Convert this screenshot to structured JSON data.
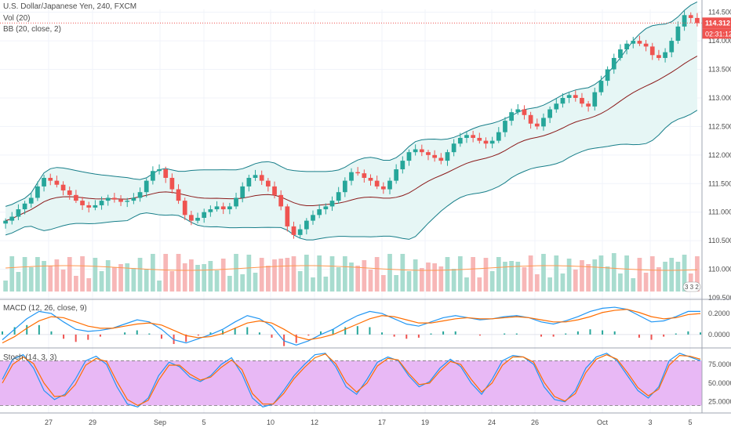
{
  "header": {
    "symbol_line": "U.S. Dollar/Japanese Yen, 240, FXCM",
    "vol_label": "Vol (20)",
    "bb_label": "BB (20, close, 2)"
  },
  "macd": {
    "label": "MACD (12, 26, close, 9)",
    "ticks": [
      "0.2000",
      "0.0000"
    ]
  },
  "stoch": {
    "label": "Stoch (14, 3, 3)",
    "ticks": [
      "75.0000",
      "50.0000",
      "25.0000"
    ]
  },
  "price_axis": {
    "ticks": [
      "114.500",
      "114.000",
      "113.500",
      "113.000",
      "112.500",
      "112.000",
      "111.500",
      "111.000",
      "110.500",
      "110.000",
      "109.500"
    ],
    "current_price": "114.312",
    "countdown": "02:31:12",
    "badge": "3 3 2"
  },
  "time_axis": {
    "labels": [
      "27",
      "29",
      "Sep",
      "5",
      "10",
      "12",
      "17",
      "19",
      "24",
      "26",
      "Oct",
      "3",
      "5"
    ]
  },
  "colors": {
    "up": "#26a69a",
    "down": "#ef5350",
    "volume_up": "#a8dccf",
    "volume_down": "#f7b7b7",
    "basis": "#8b1a1a",
    "band": "#177e89",
    "band_fill": "#e6f6f5",
    "macd_line": "#2196f3",
    "signal_line": "#ff6d00",
    "stoch_fill": "#e8b8f5"
  },
  "chart_data": [
    {
      "type": "candlestick",
      "title": "U.S. Dollar/Japanese Yen, 240, FXCM",
      "ylim": [
        109.5,
        114.55
      ],
      "series": [
        {
          "name": "USDJPY",
          "values": [
            110.85,
            110.92,
            111.05,
            111.15,
            111.25,
            111.45,
            111.6,
            111.55,
            111.48,
            111.38,
            111.3,
            111.2,
            111.12,
            111.08,
            111.12,
            111.2,
            111.25,
            111.22,
            111.18,
            111.2,
            111.25,
            111.35,
            111.55,
            111.72,
            111.75,
            111.6,
            111.4,
            111.2,
            110.95,
            110.85,
            110.9,
            111.0,
            111.05,
            111.1,
            111.05,
            111.1,
            111.25,
            111.45,
            111.6,
            111.65,
            111.55,
            111.45,
            111.3,
            111.1,
            110.75,
            110.6,
            110.7,
            110.85,
            110.95,
            111.05,
            111.1,
            111.2,
            111.35,
            111.55,
            111.7,
            111.68,
            111.6,
            111.55,
            111.45,
            111.4,
            111.55,
            111.75,
            111.9,
            112.05,
            112.1,
            112.05,
            112.0,
            111.95,
            111.9,
            112.05,
            112.2,
            112.3,
            112.35,
            112.3,
            112.25,
            112.2,
            112.25,
            112.4,
            112.6,
            112.75,
            112.8,
            112.7,
            112.55,
            112.5,
            112.65,
            112.8,
            112.9,
            113.0,
            113.05,
            113.0,
            112.9,
            112.85,
            113.1,
            113.3,
            113.5,
            113.7,
            113.85,
            113.95,
            114.0,
            113.95,
            113.9,
            113.75,
            113.7,
            113.8,
            114.0,
            114.25,
            114.45,
            114.4,
            114.31
          ]
        }
      ]
    },
    {
      "type": "line",
      "title": "MACD (12, 26, close, 9)",
      "ylim": [
        -0.12,
        0.32
      ],
      "series": [
        {
          "name": "MACD",
          "values": [
            -0.05,
            0.05,
            0.15,
            0.22,
            0.2,
            0.12,
            0.05,
            0.03,
            0.04,
            0.06,
            0.1,
            0.14,
            0.12,
            0.05,
            -0.05,
            -0.08,
            -0.04,
            0.0,
            0.05,
            0.12,
            0.18,
            0.15,
            0.08,
            -0.06,
            -0.1,
            -0.06,
            0.0,
            0.05,
            0.12,
            0.18,
            0.22,
            0.2,
            0.15,
            0.1,
            0.08,
            0.12,
            0.16,
            0.18,
            0.16,
            0.14,
            0.15,
            0.17,
            0.18,
            0.16,
            0.12,
            0.1,
            0.13,
            0.17,
            0.22,
            0.25,
            0.26,
            0.24,
            0.18,
            0.12,
            0.13,
            0.17,
            0.22,
            0.22
          ]
        },
        {
          "name": "Signal",
          "values": [
            -0.08,
            -0.02,
            0.06,
            0.13,
            0.17,
            0.16,
            0.12,
            0.08,
            0.06,
            0.06,
            0.08,
            0.1,
            0.11,
            0.09,
            0.04,
            -0.01,
            -0.03,
            -0.02,
            0.01,
            0.06,
            0.11,
            0.13,
            0.11,
            0.05,
            -0.02,
            -0.05,
            -0.03,
            0.0,
            0.05,
            0.1,
            0.15,
            0.18,
            0.17,
            0.14,
            0.11,
            0.11,
            0.13,
            0.15,
            0.16,
            0.15,
            0.15,
            0.16,
            0.17,
            0.16,
            0.14,
            0.12,
            0.12,
            0.14,
            0.17,
            0.21,
            0.23,
            0.24,
            0.21,
            0.17,
            0.15,
            0.16,
            0.19,
            0.2
          ]
        }
      ]
    },
    {
      "type": "line",
      "title": "Stoch (14, 3, 3)",
      "ylim": [
        10,
        95
      ],
      "series": [
        {
          "name": "%K",
          "values": [
            55,
            82,
            88,
            70,
            40,
            28,
            35,
            55,
            80,
            86,
            75,
            45,
            22,
            18,
            30,
            60,
            78,
            72,
            58,
            52,
            60,
            75,
            84,
            62,
            30,
            18,
            22,
            40,
            60,
            75,
            88,
            90,
            72,
            45,
            35,
            55,
            78,
            85,
            80,
            60,
            45,
            52,
            70,
            82,
            72,
            50,
            35,
            55,
            80,
            87,
            85,
            75,
            45,
            28,
            25,
            40,
            70,
            85,
            90,
            80,
            60,
            40,
            30,
            45,
            80,
            90,
            85,
            80
          ]
        },
        {
          "name": "%D",
          "values": [
            50,
            75,
            85,
            76,
            50,
            32,
            33,
            48,
            74,
            83,
            79,
            52,
            28,
            20,
            27,
            54,
            74,
            74,
            62,
            54,
            58,
            71,
            81,
            68,
            36,
            22,
            22,
            36,
            56,
            71,
            84,
            89,
            76,
            51,
            38,
            50,
            73,
            83,
            81,
            63,
            48,
            50,
            66,
            79,
            75,
            55,
            38,
            50,
            74,
            85,
            85,
            78,
            51,
            32,
            26,
            36,
            64,
            82,
            88,
            82,
            64,
            44,
            33,
            42,
            74,
            87,
            86,
            82
          ]
        }
      ]
    }
  ]
}
